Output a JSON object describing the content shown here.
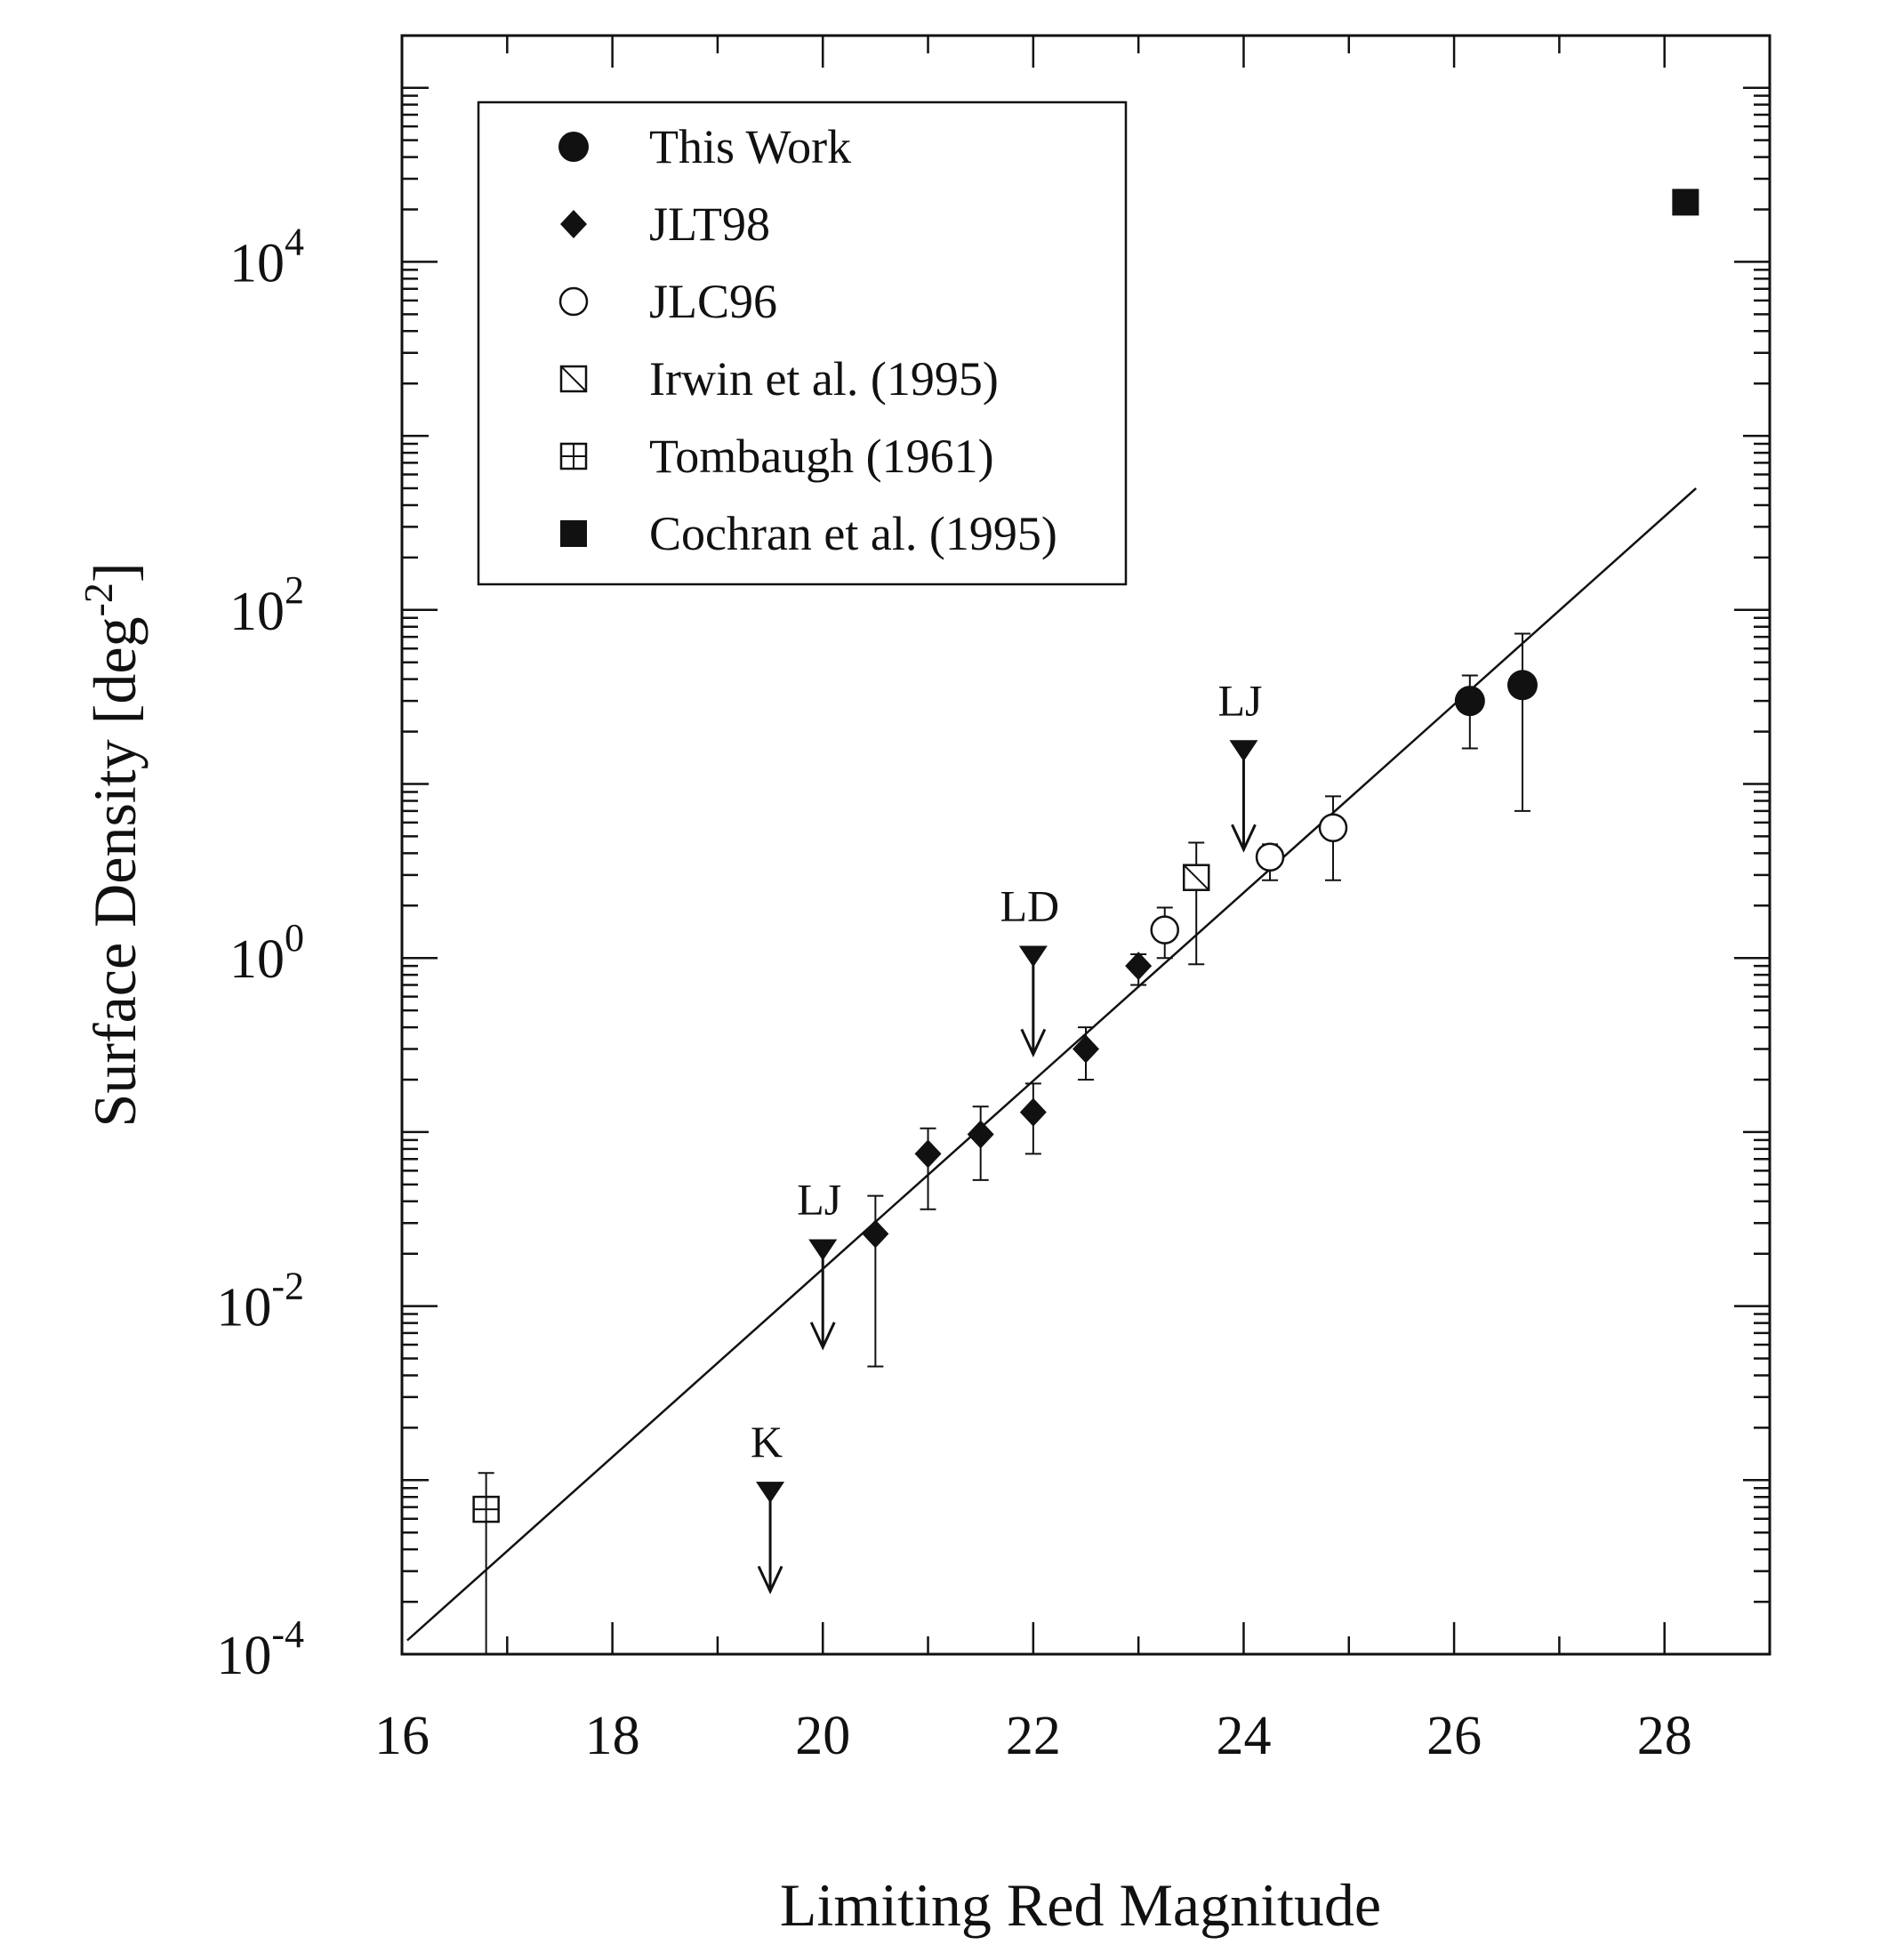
{
  "chart_data": {
    "type": "scatter",
    "xlabel": "Limiting Red Magnitude",
    "ylabel_base": "Surface Density [deg",
    "ylabel_exp": "-2",
    "ylabel_close": "]",
    "xlim": [
      16,
      29
    ],
    "ylim_exp": [
      -4,
      5.3
    ],
    "yscale": "log",
    "x_ticks": [
      16,
      18,
      20,
      22,
      24,
      26,
      28
    ],
    "y_ticks": [
      {
        "base": "10",
        "exp": "4",
        "value_exp": 4
      },
      {
        "base": "10",
        "exp": "2",
        "value_exp": 2
      },
      {
        "base": "10",
        "exp": "0",
        "value_exp": 0
      },
      {
        "base": "10",
        "exp": "-2",
        "value_exp": -2
      },
      {
        "base": "10",
        "exp": "-4",
        "value_exp": -4
      }
    ],
    "legend": {
      "placement": "top-left",
      "entries": [
        {
          "label": "This Work",
          "marker": "filled-circle"
        },
        {
          "label": "JLT98",
          "marker": "filled-diamond"
        },
        {
          "label": "JLC96",
          "marker": "open-circle"
        },
        {
          "label": "Irwin et al. (1995)",
          "marker": "slashed-square"
        },
        {
          "label": "Tombaugh (1961)",
          "marker": "crossed-square"
        },
        {
          "label": "Cochran et al. (1995)",
          "marker": "filled-square"
        }
      ]
    },
    "series": [
      {
        "name": "This Work",
        "marker": "filled-circle",
        "points": [
          {
            "x": 26.15,
            "y": 30,
            "ylo": 16,
            "yhi": 42
          },
          {
            "x": 26.65,
            "y": 37,
            "ylo": 7,
            "yhi": 73
          }
        ]
      },
      {
        "name": "JLT98",
        "marker": "filled-diamond",
        "points": [
          {
            "x": 20.5,
            "y": 0.026,
            "ylo": 0.0045,
            "yhi": 0.043
          },
          {
            "x": 21.0,
            "y": 0.075,
            "ylo": 0.036,
            "yhi": 0.105
          },
          {
            "x": 21.5,
            "y": 0.097,
            "ylo": 0.053,
            "yhi": 0.14
          },
          {
            "x": 22.0,
            "y": 0.13,
            "ylo": 0.075,
            "yhi": 0.19
          },
          {
            "x": 22.5,
            "y": 0.3,
            "ylo": 0.2,
            "yhi": 0.4
          },
          {
            "x": 23.0,
            "y": 0.9,
            "ylo": 0.7,
            "yhi": 1.05
          }
        ]
      },
      {
        "name": "JLC96",
        "marker": "open-circle",
        "points": [
          {
            "x": 23.25,
            "y": 1.45,
            "ylo": 1.0,
            "yhi": 1.95
          },
          {
            "x": 24.25,
            "y": 3.8,
            "ylo": 2.8,
            "yhi": 4.5
          },
          {
            "x": 24.85,
            "y": 5.6,
            "ylo": 2.8,
            "yhi": 8.5
          }
        ]
      },
      {
        "name": "Irwin et al. (1995)",
        "marker": "slashed-square",
        "points": [
          {
            "x": 23.55,
            "y": 2.9,
            "ylo": 0.92,
            "yhi": 4.6
          }
        ]
      },
      {
        "name": "Tombaugh (1961)",
        "marker": "crossed-square",
        "points": [
          {
            "x": 16.8,
            "y": 0.00068,
            "ylo": 0.0001,
            "yhi": 0.0011
          }
        ]
      },
      {
        "name": "Cochran et al. (1995)",
        "marker": "filled-square",
        "points": [
          {
            "x": 28.2,
            "y": 22000
          }
        ]
      }
    ],
    "fit_line": {
      "x": [
        16.05,
        28.3
      ],
      "y": [
        0.00012,
        500
      ]
    },
    "upper_limits": [
      {
        "label": "LJ",
        "x": 20.0,
        "y": 0.021,
        "arrow_to": 0.0058
      },
      {
        "label": "K",
        "x": 19.5,
        "y": 0.00085,
        "arrow_to": 0.00023
      },
      {
        "label": "LD",
        "x": 22.0,
        "y": 1.02,
        "arrow_to": 0.28
      },
      {
        "label": "LJ",
        "x": 24.0,
        "y": 15.5,
        "arrow_to": 4.2
      }
    ]
  }
}
